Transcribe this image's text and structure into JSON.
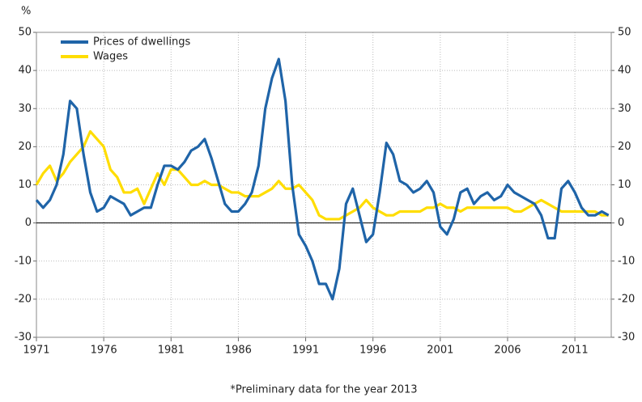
{
  "chart_data": {
    "type": "line",
    "y_label": "%",
    "footnote": "*Preliminary data for the year 2013",
    "x": [
      1971,
      1971.5,
      1972,
      1972.5,
      1973,
      1973.5,
      1974,
      1974.5,
      1975,
      1975.5,
      1976,
      1976.5,
      1977,
      1977.5,
      1978,
      1978.5,
      1979,
      1979.5,
      1980,
      1980.5,
      1981,
      1981.5,
      1982,
      1982.5,
      1983,
      1983.5,
      1984,
      1984.5,
      1985,
      1985.5,
      1986,
      1986.5,
      1987,
      1987.5,
      1988,
      1988.5,
      1989,
      1989.5,
      1990,
      1990.5,
      1991,
      1991.5,
      1992,
      1992.5,
      1993,
      1993.5,
      1994,
      1994.5,
      1995,
      1995.5,
      1996,
      1996.5,
      1997,
      1997.5,
      1998,
      1998.5,
      1999,
      1999.5,
      2000,
      2000.5,
      2001,
      2001.5,
      2002,
      2002.5,
      2003,
      2003.5,
      2004,
      2004.5,
      2005,
      2005.5,
      2006,
      2006.5,
      2007,
      2007.5,
      2008,
      2008.5,
      2009,
      2009.5,
      2010,
      2010.5,
      2011,
      2011.5,
      2012,
      2012.5,
      2013,
      2013.5
    ],
    "series": [
      {
        "name": "Prices of dwellings",
        "color": "#1f64a8",
        "values": [
          6,
          4,
          6,
          10,
          18,
          32,
          30,
          18,
          8,
          3,
          4,
          7,
          6,
          5,
          2,
          3,
          4,
          4,
          10,
          15,
          15,
          14,
          16,
          19,
          20,
          22,
          17,
          11,
          5,
          3,
          3,
          5,
          8,
          15,
          30,
          38,
          43,
          32,
          10,
          -3,
          -6,
          -10,
          -16,
          -16,
          -20,
          -12,
          5,
          9,
          2,
          -5,
          -3,
          8,
          21,
          18,
          11,
          10,
          8,
          9,
          11,
          8,
          -1,
          -3,
          1,
          8,
          9,
          5,
          7,
          8,
          6,
          7,
          10,
          8,
          7,
          6,
          5,
          2,
          -4,
          -4,
          9,
          11,
          8,
          4,
          2,
          2,
          3,
          2
        ]
      },
      {
        "name": "Wages",
        "color": "#ffdd00",
        "values": [
          10,
          13,
          15,
          11,
          13,
          16,
          18,
          20,
          24,
          22,
          20,
          14,
          12,
          8,
          8,
          9,
          5,
          9,
          13,
          10,
          14,
          14,
          12,
          10,
          10,
          11,
          10,
          10,
          9,
          8,
          8,
          7,
          7,
          7,
          8,
          9,
          11,
          9,
          9,
          10,
          8,
          6,
          2,
          1,
          1,
          1,
          2,
          3,
          4,
          6,
          4,
          3,
          2,
          2,
          3,
          3,
          3,
          3,
          4,
          4,
          5,
          4,
          4,
          3,
          4,
          4,
          4,
          4,
          4,
          4,
          4,
          3,
          3,
          4,
          5,
          6,
          5,
          4,
          3,
          3,
          3,
          3,
          3,
          3,
          2,
          2
        ]
      }
    ],
    "xlim": [
      1971,
      2013.7
    ],
    "xticks": [
      1971,
      1976,
      1981,
      1986,
      1991,
      1996,
      2001,
      2006,
      2011
    ],
    "ylim": [
      -30,
      50
    ],
    "yticks": [
      -30,
      -20,
      -10,
      0,
      10,
      20,
      30,
      40,
      50
    ],
    "y2lim": [
      -30,
      50
    ],
    "y2ticks": [
      -30,
      -20,
      -10,
      0,
      10,
      20,
      30,
      40,
      50
    ],
    "grid": true,
    "legend": "upper left"
  }
}
